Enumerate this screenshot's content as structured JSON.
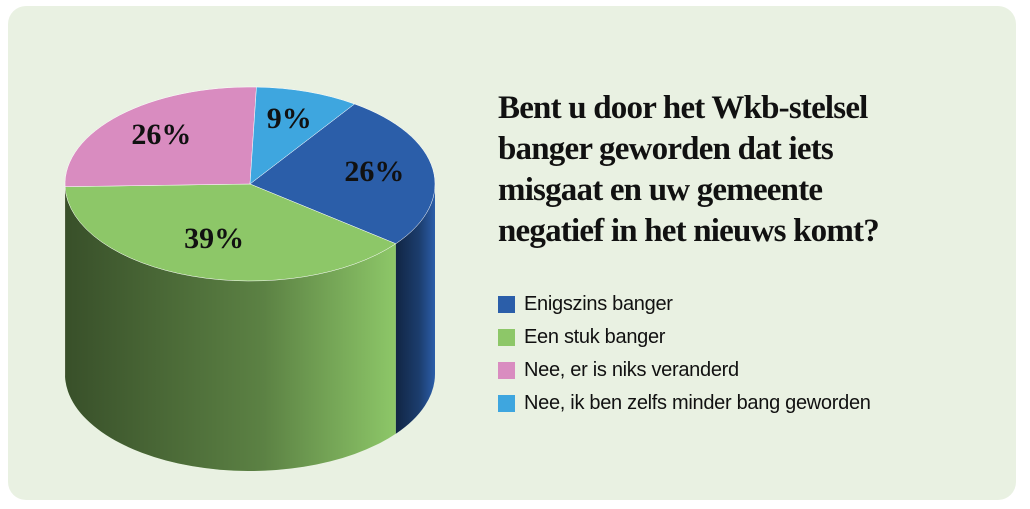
{
  "chart_data": {
    "type": "pie",
    "title": "Bent u door het Wkb-stelsel banger geworden dat iets misgaat en uw gemeente negatief in het nieuws komt?",
    "categories": [
      "Enigszins banger",
      "Een stuk banger",
      "Nee, er is niks veranderd",
      "Nee, ik ben zelfs minder bang geworden"
    ],
    "values": [
      26,
      39,
      26,
      9
    ],
    "value_labels": [
      "26%",
      "39%",
      "26%",
      "9%"
    ],
    "colors": [
      "#2b5ea9",
      "#8dc768",
      "#d98cc0",
      "#3ea6df"
    ]
  }
}
